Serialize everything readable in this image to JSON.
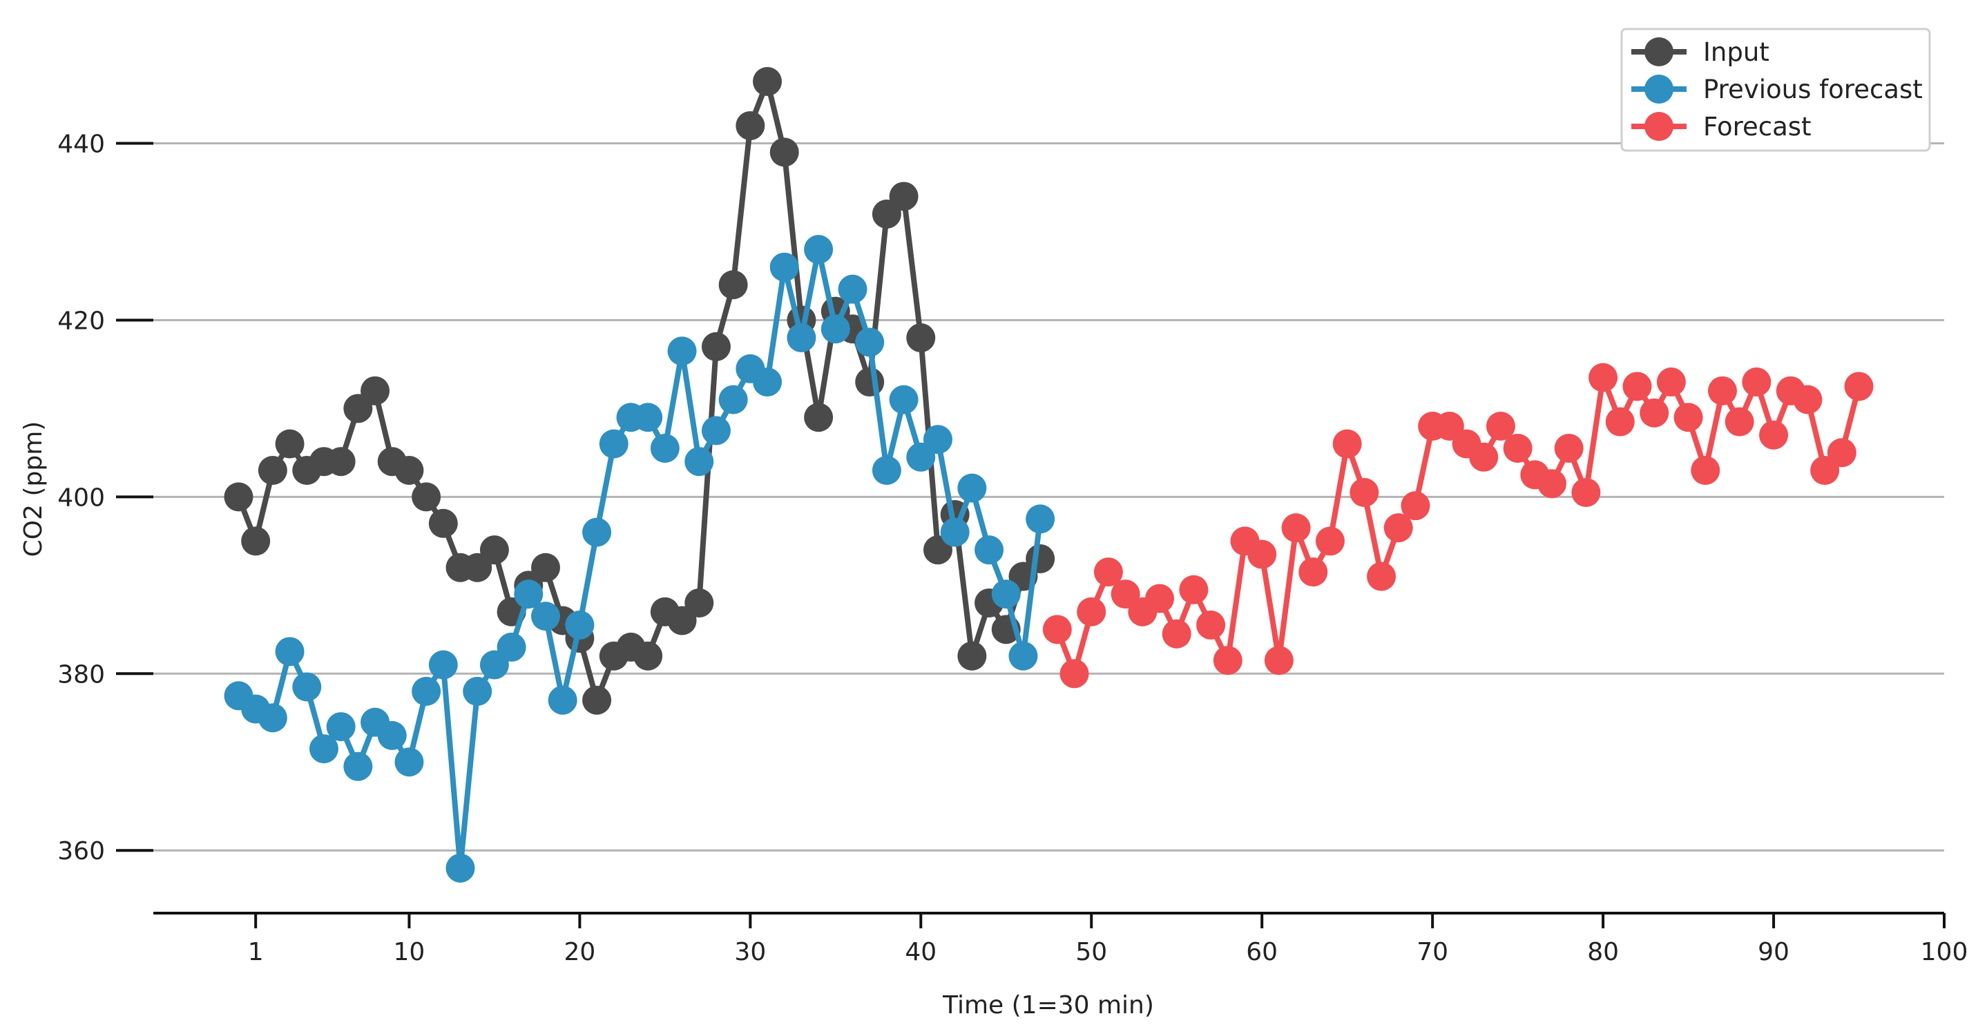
{
  "chart_data": {
    "type": "line",
    "xlabel": "Time (1=30 min)",
    "ylabel": "CO2 (ppm)",
    "xlim": [
      -5,
      100
    ],
    "ylim": [
      354,
      452
    ],
    "x_ticks": [
      1,
      10,
      20,
      30,
      40,
      50,
      60,
      70,
      80,
      90,
      100
    ],
    "y_ticks": [
      360,
      380,
      400,
      420,
      440
    ],
    "grid": "horizontal",
    "legend_position": "top-right",
    "series": [
      {
        "name": "Input",
        "color": "#4a4a4a",
        "points": [
          [
            0,
            400
          ],
          [
            1,
            395
          ],
          [
            2,
            403
          ],
          [
            3,
            406
          ],
          [
            4,
            403
          ],
          [
            5,
            404
          ],
          [
            6,
            404
          ],
          [
            7,
            410
          ],
          [
            8,
            412
          ],
          [
            9,
            404
          ],
          [
            10,
            403
          ],
          [
            11,
            400
          ],
          [
            12,
            397
          ],
          [
            13,
            392
          ],
          [
            14,
            392
          ],
          [
            15,
            394
          ],
          [
            16,
            387
          ],
          [
            17,
            390
          ],
          [
            18,
            392
          ],
          [
            19,
            386
          ],
          [
            20,
            384
          ],
          [
            21,
            377
          ],
          [
            22,
            382
          ],
          [
            23,
            383
          ],
          [
            24,
            382
          ],
          [
            25,
            387
          ],
          [
            26,
            386
          ],
          [
            27,
            388
          ],
          [
            28,
            417
          ],
          [
            29,
            424
          ],
          [
            30,
            442
          ],
          [
            31,
            447
          ],
          [
            32,
            439
          ],
          [
            33,
            420
          ],
          [
            34,
            409
          ],
          [
            35,
            421
          ],
          [
            36,
            419
          ],
          [
            37,
            413
          ],
          [
            38,
            432
          ],
          [
            39,
            434
          ],
          [
            40,
            418
          ],
          [
            41,
            394
          ],
          [
            42,
            398
          ],
          [
            43,
            382
          ],
          [
            44,
            388
          ],
          [
            45,
            385
          ],
          [
            46,
            391
          ],
          [
            47,
            393
          ]
        ]
      },
      {
        "name": "Previous forecast",
        "color": "#2e8fc0",
        "points": [
          [
            0,
            377.5
          ],
          [
            1,
            376
          ],
          [
            2,
            375
          ],
          [
            3,
            382.5
          ],
          [
            4,
            378.5
          ],
          [
            5,
            371.5
          ],
          [
            6,
            374
          ],
          [
            7,
            369.5
          ],
          [
            8,
            374.5
          ],
          [
            9,
            373
          ],
          [
            10,
            370
          ],
          [
            11,
            378
          ],
          [
            12,
            381
          ],
          [
            13,
            358
          ],
          [
            14,
            378
          ],
          [
            15,
            381
          ],
          [
            16,
            383
          ],
          [
            17,
            389
          ],
          [
            18,
            386.5
          ],
          [
            19,
            377
          ],
          [
            20,
            385.5
          ],
          [
            21,
            396
          ],
          [
            22,
            406
          ],
          [
            23,
            409
          ],
          [
            24,
            409
          ],
          [
            25,
            405.5
          ],
          [
            26,
            416.5
          ],
          [
            27,
            404
          ],
          [
            28,
            407.5
          ],
          [
            29,
            411
          ],
          [
            30,
            414.5
          ],
          [
            31,
            413
          ],
          [
            32,
            426
          ],
          [
            33,
            418
          ],
          [
            34,
            428
          ],
          [
            35,
            419
          ],
          [
            36,
            423.5
          ],
          [
            37,
            417.5
          ],
          [
            38,
            403
          ],
          [
            39,
            411
          ],
          [
            40,
            404.5
          ],
          [
            41,
            406.5
          ],
          [
            42,
            396
          ],
          [
            43,
            401
          ],
          [
            44,
            394
          ],
          [
            45,
            389
          ],
          [
            46,
            382
          ],
          [
            47,
            397.5
          ]
        ]
      },
      {
        "name": "Forecast",
        "color": "#f04e52",
        "points": [
          [
            48,
            385
          ],
          [
            49,
            380
          ],
          [
            50,
            387
          ],
          [
            51,
            391.5
          ],
          [
            52,
            389
          ],
          [
            53,
            387
          ],
          [
            54,
            388.5
          ],
          [
            55,
            384.5
          ],
          [
            56,
            389.5
          ],
          [
            57,
            385.5
          ],
          [
            58,
            381.5
          ],
          [
            59,
            395
          ],
          [
            60,
            393.5
          ],
          [
            61,
            381.5
          ],
          [
            62,
            396.5
          ],
          [
            63,
            391.5
          ],
          [
            64,
            395
          ],
          [
            65,
            406
          ],
          [
            66,
            400.5
          ],
          [
            67,
            391
          ],
          [
            68,
            396.5
          ],
          [
            69,
            399
          ],
          [
            70,
            408
          ],
          [
            71,
            408
          ],
          [
            72,
            406
          ],
          [
            73,
            404.5
          ],
          [
            74,
            408
          ],
          [
            75,
            405.5
          ],
          [
            76,
            402.5
          ],
          [
            77,
            401.5
          ],
          [
            78,
            405.5
          ],
          [
            79,
            400.5
          ],
          [
            80,
            413.5
          ],
          [
            81,
            408.5
          ],
          [
            82,
            412.5
          ],
          [
            83,
            409.5
          ],
          [
            84,
            413
          ],
          [
            85,
            409
          ],
          [
            86,
            403
          ],
          [
            87,
            412
          ],
          [
            88,
            408.5
          ],
          [
            89,
            413
          ],
          [
            90,
            407
          ],
          [
            91,
            412
          ],
          [
            92,
            411
          ],
          [
            93,
            403
          ],
          [
            94,
            405
          ],
          [
            95,
            412.5
          ]
        ]
      }
    ]
  }
}
